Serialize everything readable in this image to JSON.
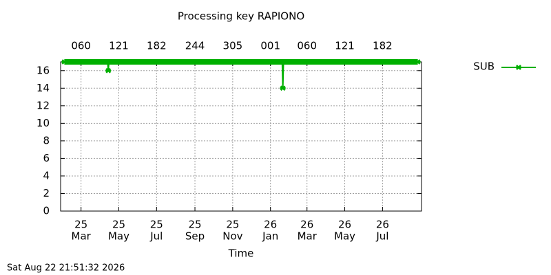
{
  "chart_data": {
    "type": "line",
    "title": "Processing key RAPIONO",
    "x_label": "Time",
    "annotation": "Sat Aug 22 21:51:32 2026",
    "x": [
      "2025-02-02",
      "2025-04-13",
      "2025-04-14",
      "2025-04-15",
      "2026-01-20",
      "2026-01-21",
      "2026-01-22",
      "2026-08-27"
    ],
    "series": [
      {
        "name": "SUB",
        "color": "#00b000",
        "values": [
          17,
          17,
          16,
          17,
          17,
          14,
          17,
          17
        ]
      }
    ],
    "xlim": [
      "2025-01-27",
      "2026-09-02"
    ],
    "xticks": [
      {
        "value": "2025-03-01",
        "label": [
          "25",
          "Mar"
        ]
      },
      {
        "value": "2025-05-01",
        "label": [
          "25",
          "May"
        ]
      },
      {
        "value": "2025-07-01",
        "label": [
          "25",
          "Jul"
        ]
      },
      {
        "value": "2025-09-01",
        "label": [
          "25",
          "Sep"
        ]
      },
      {
        "value": "2025-11-01",
        "label": [
          "25",
          "Nov"
        ]
      },
      {
        "value": "2026-01-01",
        "label": [
          "26",
          "Jan"
        ]
      },
      {
        "value": "2026-03-01",
        "label": [
          "26",
          "Mar"
        ]
      },
      {
        "value": "2026-05-01",
        "label": [
          "26",
          "May"
        ]
      },
      {
        "value": "2026-07-01",
        "label": [
          "26",
          "Jul"
        ]
      }
    ],
    "x2ticks": [
      {
        "value": "2025-03-01",
        "label": "060"
      },
      {
        "value": "2025-05-01",
        "label": "121"
      },
      {
        "value": "2025-07-01",
        "label": "182"
      },
      {
        "value": "2025-09-01",
        "label": "244"
      },
      {
        "value": "2025-11-01",
        "label": "305"
      },
      {
        "value": "2026-01-01",
        "label": "001"
      },
      {
        "value": "2026-03-01",
        "label": "060"
      },
      {
        "value": "2026-05-01",
        "label": "121"
      },
      {
        "value": "2026-07-01",
        "label": "182"
      }
    ],
    "ylim": [
      0,
      17
    ],
    "yticks": [
      0,
      2,
      4,
      6,
      8,
      10,
      12,
      14,
      16
    ],
    "grid": true,
    "legend": "outside-right"
  }
}
